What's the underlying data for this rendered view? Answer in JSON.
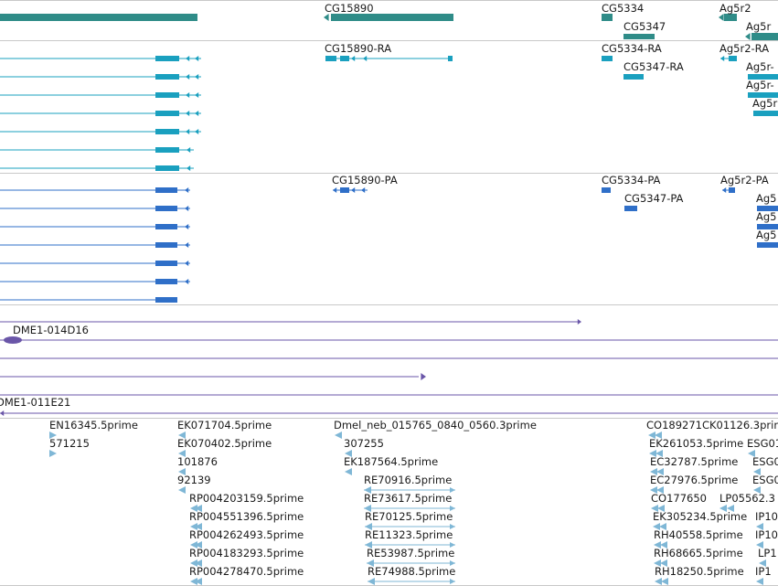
{
  "colors": {
    "gene": "#2f8c88",
    "mrna": "#1aa0bf",
    "protein": "#2f6fc8",
    "clone": "#6a56a8",
    "est": "#7fb7d6",
    "divider": "#c8c8c8"
  },
  "tracks": {
    "genes": {
      "labels": [
        "CG15890",
        "CG5334",
        "CG5347",
        "Ag5r2",
        "Ag5r"
      ]
    },
    "transcripts": {
      "labels": [
        "CG15890-RA",
        "CG5334-RA",
        "CG5347-RA",
        "Ag5r2-RA",
        "Ag5r-",
        "Ag5r-",
        "Ag5r"
      ]
    },
    "proteins": {
      "labels": [
        "CG15890-PA",
        "CG5334-PA",
        "CG5347-PA",
        "Ag5r2-PA",
        "Ag5",
        "Ag5",
        "Ag5"
      ]
    },
    "clones": {
      "labels": [
        "DME1-014D16",
        "DME1-011E21"
      ]
    },
    "ests": {
      "labels": [
        "EN16345.5prime",
        "571215",
        "EK071704.5prime",
        "EK070402.5prime",
        "101876",
        "92139",
        "RP004203159.5prime",
        "RP004551396.5prime",
        "RP004262493.5prime",
        "RP004183293.5prime",
        "RP004278470.5prime",
        "Dmel_neb_015765_0840_0560.3prime",
        "307255",
        "EK187564.5prime",
        "RE70916.5prime",
        "RE73617.5prime",
        "RE70125.5prime",
        "RE11323.5prime",
        "RE53987.5prime",
        "RE74988.5prime",
        "CO189271CK01126.3prim",
        "EK261053.5prime",
        "EC32787.5prime",
        "EC27976.5prime",
        "CO177650",
        "EK305234.5prime",
        "RH40558.5prime",
        "RH68665.5prime",
        "RH18250.5prime",
        "LP05562.3",
        "ESG01",
        "ESG0",
        "ESG0",
        "IP10",
        "IP10",
        "LP1",
        "IP1"
      ]
    }
  }
}
